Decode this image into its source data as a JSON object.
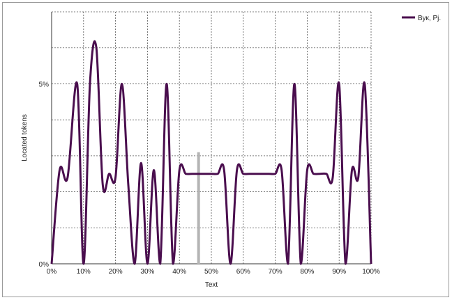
{
  "chart_data": {
    "type": "line",
    "title": "",
    "xlabel": "Text",
    "ylabel": "Located tokens",
    "xlim": [
      0,
      100
    ],
    "ylim": [
      0,
      7
    ],
    "x_ticks": [
      0,
      10,
      20,
      30,
      40,
      50,
      60,
      70,
      80,
      90,
      100
    ],
    "x_tick_labels": [
      "0%",
      "10%",
      "20%",
      "30%",
      "40%",
      "50%",
      "60%",
      "70%",
      "80%",
      "90%",
      "100%"
    ],
    "y_ticks": [
      0,
      5
    ],
    "y_tick_labels": [
      "0%",
      "5%"
    ],
    "grid": true,
    "legend_position": "top-right",
    "series": [
      {
        "name": "Вук, Рј.",
        "color": "#4a0e4e",
        "x": [
          0,
          2.5,
          5,
          8,
          10,
          12,
          14,
          16,
          18,
          20,
          22,
          24,
          26,
          28,
          30,
          32,
          34,
          36,
          38,
          40,
          42,
          44,
          46,
          48,
          50,
          52,
          54,
          56,
          58,
          60,
          62,
          64,
          66,
          68,
          70,
          72,
          74,
          76,
          78,
          80,
          82,
          84,
          86,
          88,
          90,
          92,
          94,
          96,
          98,
          100
        ],
        "values": [
          0,
          2.6,
          2.4,
          5.0,
          0,
          5.0,
          6.0,
          2.2,
          2.5,
          2.4,
          5.0,
          2.2,
          0,
          2.8,
          0,
          2.6,
          0,
          5.0,
          0,
          2.6,
          2.5,
          2.5,
          2.5,
          2.5,
          2.5,
          2.5,
          2.6,
          0,
          2.6,
          2.5,
          2.5,
          2.5,
          2.5,
          2.5,
          2.5,
          2.6,
          0,
          5.0,
          0,
          2.6,
          2.5,
          2.5,
          2.5,
          2.4,
          5.0,
          0,
          2.6,
          2.4,
          5.0,
          0
        ]
      }
    ],
    "marker": {
      "x": 46,
      "value": 3.1,
      "color": "#b4b4b4"
    }
  }
}
